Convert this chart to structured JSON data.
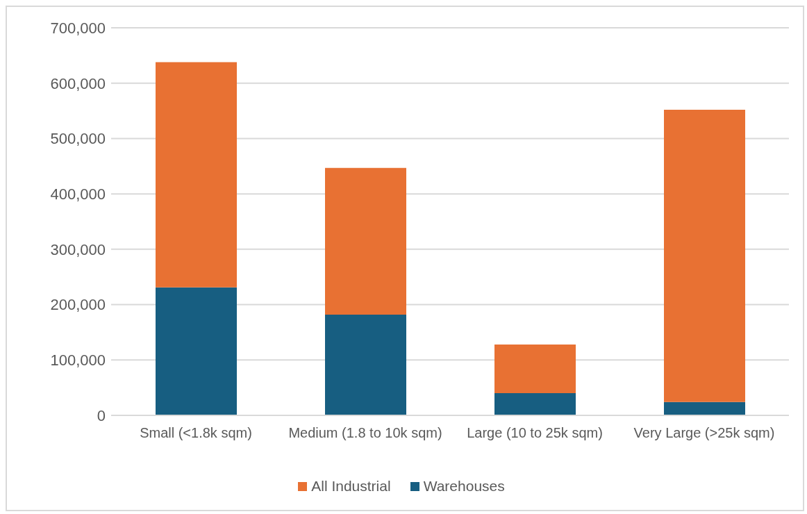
{
  "chart_data": {
    "type": "bar",
    "stacked": true,
    "categories": [
      "Small (<1.8k sqm)",
      "Medium (1.8 to 10k sqm)",
      "Large (10 to 25k sqm)",
      "Very Large (>25k sqm)"
    ],
    "series": [
      {
        "name": "Warehouses",
        "color": "#175e81",
        "values": [
          231000,
          182000,
          40000,
          24000
        ]
      },
      {
        "name": "All Industrial",
        "color": "#e87133",
        "values": [
          407000,
          265000,
          88000,
          528000
        ]
      }
    ],
    "ylim": [
      0,
      700000
    ],
    "yticks": [
      0,
      {
        "value": 100000,
        "label": "100,000"
      },
      {
        "value": 200000,
        "label": "200,000"
      },
      {
        "value": 300000,
        "label": "300,000"
      },
      {
        "value": 400000,
        "label": "400,000"
      },
      {
        "value": 500000,
        "label": "500,000"
      },
      {
        "value": 600000,
        "label": "600,000"
      },
      {
        "value": 700000,
        "label": "700,000"
      }
    ],
    "grid": "y",
    "legend": "bottom"
  }
}
